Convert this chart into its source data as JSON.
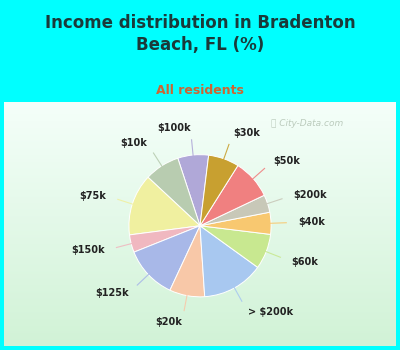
{
  "title": "Income distribution in Bradenton\nBeach, FL (%)",
  "subtitle": "All residents",
  "title_color": "#1a3a3a",
  "subtitle_color": "#cc6633",
  "background_color": "#00ffff",
  "chart_bg_top": "#f0faf8",
  "chart_bg_bottom": "#d8f0d8",
  "watermark": "City-Data.com",
  "labels": [
    "$100k",
    "$10k",
    "$75k",
    "$150k",
    "$125k",
    "$20k",
    "> $200k",
    "$60k",
    "$40k",
    "$200k",
    "$50k",
    "$30k"
  ],
  "values": [
    7,
    8,
    14,
    4,
    12,
    8,
    14,
    8,
    5,
    4,
    9,
    7
  ],
  "colors": [
    "#b0a8d8",
    "#b8ccb0",
    "#f0f0a0",
    "#f0b8c0",
    "#a8b8e8",
    "#f8c8a8",
    "#a8c8f0",
    "#c8e890",
    "#f8c870",
    "#c8c8b8",
    "#f08080",
    "#c8a030"
  ],
  "start_angle": 83,
  "label_distance": 1.38,
  "fontsize_title": 12,
  "fontsize_subtitle": 9,
  "fontsize_labels": 7
}
